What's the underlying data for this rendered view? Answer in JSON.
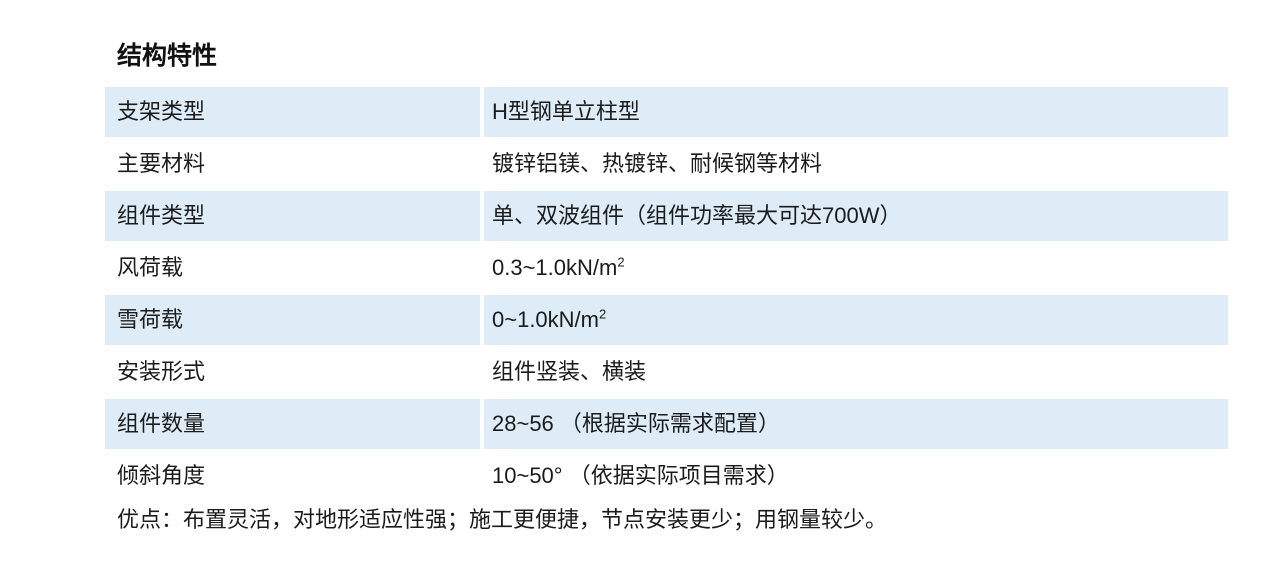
{
  "page": {
    "title": "结构特性"
  },
  "table": {
    "rows": [
      {
        "label": "支架类型",
        "value": "H型钢单立柱型"
      },
      {
        "label": "主要材料",
        "value": "镀锌铝镁、热镀锌、耐候钢等材料"
      },
      {
        "label": "组件类型",
        "value": "单、双波组件（组件功率最大可达700W）"
      },
      {
        "label": "风荷载",
        "value": "0.3~1.0kN/m",
        "value_sup": "2"
      },
      {
        "label": "雪荷载",
        "value": "0~1.0kN/m",
        "value_sup": "2"
      },
      {
        "label": "安装形式",
        "value": "组件竖装、横装"
      },
      {
        "label": "组件数量",
        "value": "28~56 （根据实际需求配置）"
      },
      {
        "label": "倾斜角度",
        "value": "10~50° （依据实际项目需求）"
      }
    ],
    "footer_note": "优点：布置灵活，对地形适应性强；施工更便捷，节点安装更少；用钢量较少。"
  },
  "colors": {
    "row_highlight": "#ddecf7",
    "text": "#1b1b1b",
    "background": "#ffffff"
  }
}
